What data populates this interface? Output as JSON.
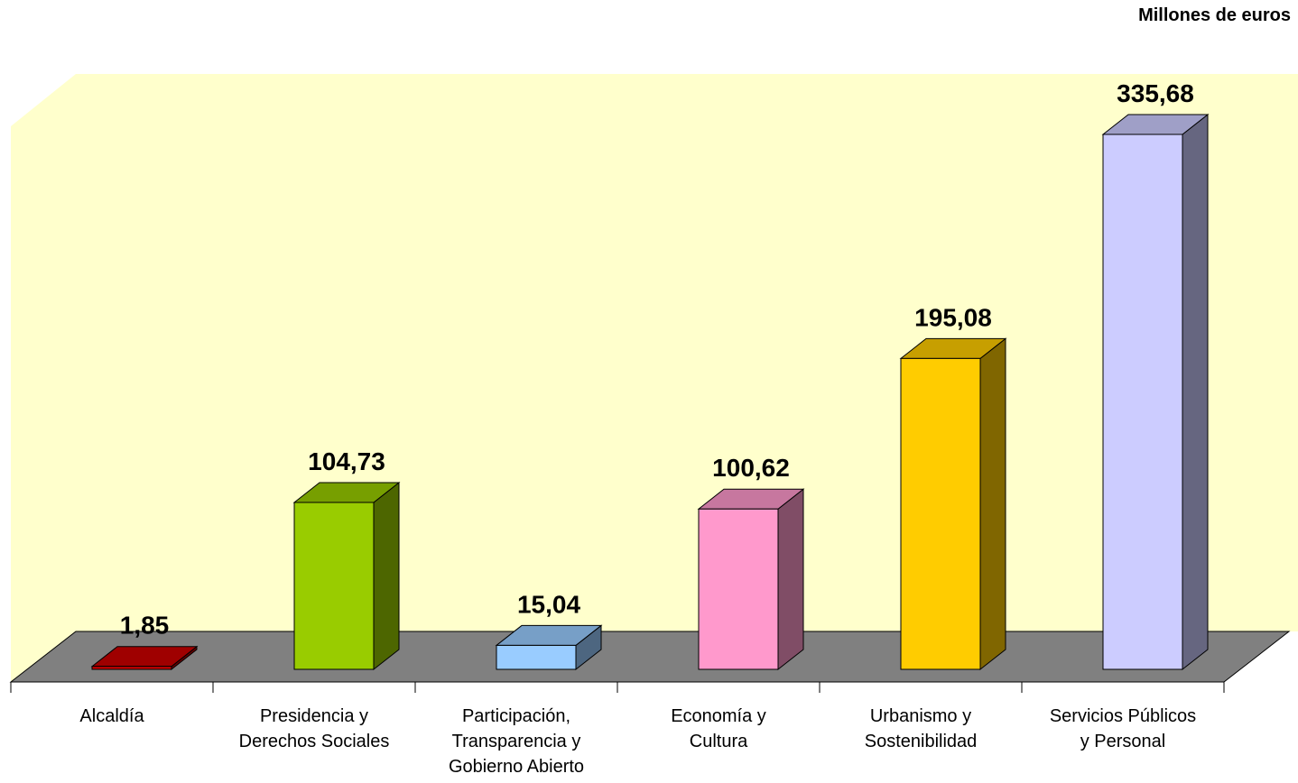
{
  "chart_data": {
    "type": "bar3d",
    "subtitle": "Millones de euros",
    "categories": [
      "Alcaldía",
      "Presidencia y\nDerechos Sociales",
      "Participación,\nTransparencia y\nGobierno Abierto",
      "Economía y\nCultura",
      "Urbanismo y\nSostenibilidad",
      "Servicios Públicos\ny Personal"
    ],
    "values": [
      1.85,
      104.73,
      15.04,
      100.62,
      195.08,
      335.68
    ],
    "value_labels": [
      "1,85",
      "104,73",
      "15,04",
      "100,62",
      "195,08",
      "335,68"
    ],
    "colors": [
      "#cc0000",
      "#99cc00",
      "#99ccff",
      "#ff99cc",
      "#ffcc00",
      "#ccccff"
    ]
  }
}
